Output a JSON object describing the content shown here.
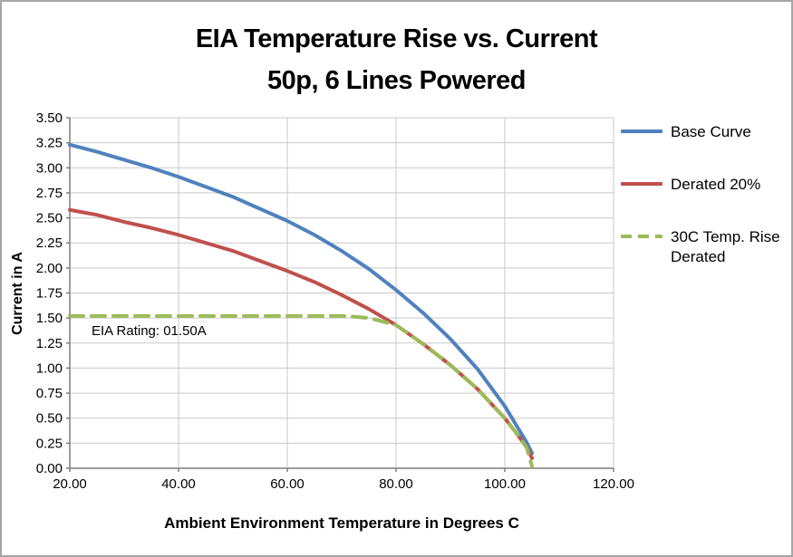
{
  "chart_data": {
    "type": "line",
    "title": "EIA Temperature Rise vs. Current",
    "subtitle": "50p, 6 Lines Powered",
    "xlabel": "Ambient Environment Temperature in Degrees C",
    "ylabel": "Current in A",
    "xlim": [
      20,
      120
    ],
    "ylim": [
      0,
      3.5
    ],
    "x_ticks": [
      20,
      40,
      60,
      80,
      100,
      120
    ],
    "x_tick_labels": [
      "20.00",
      "40.00",
      "60.00",
      "80.00",
      "100.00",
      "120.00"
    ],
    "y_ticks": [
      0,
      0.25,
      0.5,
      0.75,
      1,
      1.25,
      1.5,
      1.75,
      2,
      2.25,
      2.5,
      2.75,
      3,
      3.25,
      3.5
    ],
    "y_tick_labels": [
      "0.00",
      "0.25",
      "0.50",
      "0.75",
      "1.00",
      "1.25",
      "1.50",
      "1.75",
      "2.00",
      "2.25",
      "2.50",
      "2.75",
      "3.00",
      "3.25",
      "3.50"
    ],
    "grid": "both",
    "grid_color": "#c9c9c9",
    "axis_color": "#7f7f7f",
    "legend_position": "right",
    "annotation": {
      "text": "EIA Rating:  01.50A",
      "x": 24,
      "y": 1.33
    },
    "series": [
      {
        "name": "Base Curve",
        "color": "#4f81bd",
        "style": "solid",
        "points": [
          [
            20,
            3.23
          ],
          [
            25,
            3.16
          ],
          [
            30,
            3.08
          ],
          [
            35,
            3.0
          ],
          [
            40,
            2.91
          ],
          [
            45,
            2.81
          ],
          [
            50,
            2.71
          ],
          [
            55,
            2.59
          ],
          [
            60,
            2.47
          ],
          [
            65,
            2.33
          ],
          [
            70,
            2.17
          ],
          [
            75,
            1.99
          ],
          [
            80,
            1.78
          ],
          [
            85,
            1.55
          ],
          [
            90,
            1.29
          ],
          [
            95,
            0.99
          ],
          [
            100,
            0.62
          ],
          [
            102,
            0.44
          ],
          [
            104,
            0.26
          ],
          [
            105,
            0.15
          ]
        ]
      },
      {
        "name": "Derated 20%",
        "color": "#c0504d",
        "style": "solid",
        "points": [
          [
            20,
            2.58
          ],
          [
            25,
            2.53
          ],
          [
            30,
            2.46
          ],
          [
            35,
            2.4
          ],
          [
            40,
            2.33
          ],
          [
            45,
            2.25
          ],
          [
            50,
            2.17
          ],
          [
            55,
            2.07
          ],
          [
            60,
            1.97
          ],
          [
            65,
            1.86
          ],
          [
            70,
            1.73
          ],
          [
            75,
            1.59
          ],
          [
            80,
            1.43
          ],
          [
            85,
            1.24
          ],
          [
            90,
            1.03
          ],
          [
            95,
            0.79
          ],
          [
            100,
            0.5
          ],
          [
            102,
            0.36
          ],
          [
            104,
            0.21
          ],
          [
            105,
            0.1
          ]
        ]
      },
      {
        "name": "30C Temp. Rise Derated",
        "color": "#9bbb59",
        "style": "dashed",
        "points": [
          [
            20,
            1.52
          ],
          [
            71,
            1.52
          ],
          [
            75,
            1.5
          ],
          [
            80,
            1.43
          ],
          [
            85,
            1.24
          ],
          [
            90,
            1.03
          ],
          [
            95,
            0.79
          ],
          [
            100,
            0.5
          ],
          [
            102,
            0.36
          ],
          [
            104,
            0.21
          ],
          [
            105,
            0.02
          ]
        ]
      }
    ]
  }
}
